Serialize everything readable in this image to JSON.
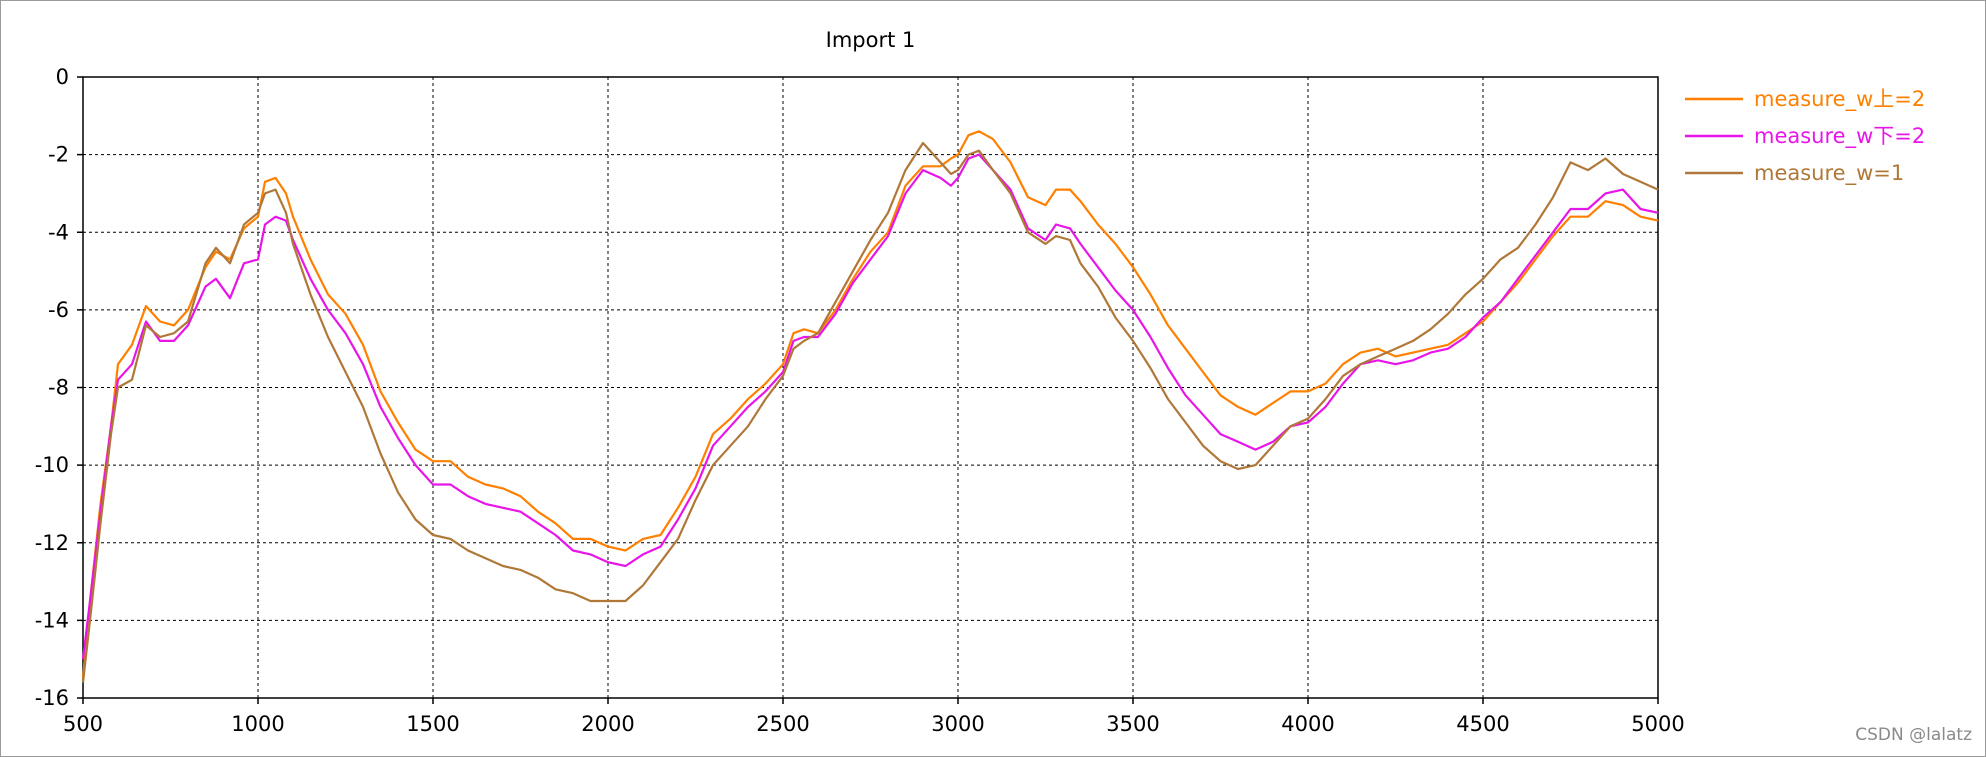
{
  "watermark": "CSDN @lalatz",
  "chart_data": {
    "type": "line",
    "title": "Import 1",
    "xlabel": "",
    "ylabel": "",
    "xlim": [
      500,
      5000
    ],
    "ylim": [
      -16,
      0
    ],
    "xticks": [
      500,
      1000,
      1500,
      2000,
      2500,
      3000,
      3500,
      4000,
      4500,
      5000
    ],
    "yticks": [
      0,
      -2,
      -4,
      -6,
      -8,
      -10,
      -12,
      -14,
      -16
    ],
    "grid": true,
    "legend_position": "right",
    "series": [
      {
        "name": "measure_w上=2",
        "color": "#ff8000",
        "points": [
          [
            500,
            -15.5
          ],
          [
            520,
            -13.5
          ],
          [
            550,
            -11
          ],
          [
            580,
            -9
          ],
          [
            600,
            -7.4
          ],
          [
            640,
            -6.9
          ],
          [
            680,
            -5.9
          ],
          [
            720,
            -6.3
          ],
          [
            760,
            -6.4
          ],
          [
            800,
            -6.0
          ],
          [
            850,
            -4.9
          ],
          [
            880,
            -4.5
          ],
          [
            920,
            -4.7
          ],
          [
            960,
            -3.9
          ],
          [
            1000,
            -3.6
          ],
          [
            1020,
            -2.7
          ],
          [
            1050,
            -2.6
          ],
          [
            1080,
            -3.0
          ],
          [
            1100,
            -3.6
          ],
          [
            1150,
            -4.7
          ],
          [
            1200,
            -5.6
          ],
          [
            1250,
            -6.1
          ],
          [
            1300,
            -6.9
          ],
          [
            1350,
            -8.1
          ],
          [
            1400,
            -8.9
          ],
          [
            1450,
            -9.6
          ],
          [
            1500,
            -9.9
          ],
          [
            1550,
            -9.9
          ],
          [
            1600,
            -10.3
          ],
          [
            1650,
            -10.5
          ],
          [
            1700,
            -10.6
          ],
          [
            1750,
            -10.8
          ],
          [
            1800,
            -11.2
          ],
          [
            1850,
            -11.5
          ],
          [
            1900,
            -11.9
          ],
          [
            1950,
            -11.9
          ],
          [
            2000,
            -12.1
          ],
          [
            2050,
            -12.2
          ],
          [
            2100,
            -11.9
          ],
          [
            2150,
            -11.8
          ],
          [
            2200,
            -11.1
          ],
          [
            2250,
            -10.3
          ],
          [
            2300,
            -9.2
          ],
          [
            2350,
            -8.8
          ],
          [
            2400,
            -8.3
          ],
          [
            2450,
            -7.9
          ],
          [
            2500,
            -7.4
          ],
          [
            2530,
            -6.6
          ],
          [
            2560,
            -6.5
          ],
          [
            2600,
            -6.6
          ],
          [
            2650,
            -6.0
          ],
          [
            2700,
            -5.2
          ],
          [
            2750,
            -4.5
          ],
          [
            2800,
            -4.0
          ],
          [
            2850,
            -2.8
          ],
          [
            2900,
            -2.3
          ],
          [
            2950,
            -2.3
          ],
          [
            2980,
            -2.1
          ],
          [
            3000,
            -2.0
          ],
          [
            3030,
            -1.5
          ],
          [
            3060,
            -1.4
          ],
          [
            3100,
            -1.6
          ],
          [
            3150,
            -2.2
          ],
          [
            3200,
            -3.1
          ],
          [
            3250,
            -3.3
          ],
          [
            3280,
            -2.9
          ],
          [
            3320,
            -2.9
          ],
          [
            3350,
            -3.2
          ],
          [
            3400,
            -3.8
          ],
          [
            3450,
            -4.3
          ],
          [
            3500,
            -4.9
          ],
          [
            3550,
            -5.6
          ],
          [
            3600,
            -6.4
          ],
          [
            3650,
            -7.0
          ],
          [
            3700,
            -7.6
          ],
          [
            3750,
            -8.2
          ],
          [
            3800,
            -8.5
          ],
          [
            3850,
            -8.7
          ],
          [
            3900,
            -8.4
          ],
          [
            3950,
            -8.1
          ],
          [
            4000,
            -8.1
          ],
          [
            4050,
            -7.9
          ],
          [
            4100,
            -7.4
          ],
          [
            4150,
            -7.1
          ],
          [
            4200,
            -7.0
          ],
          [
            4250,
            -7.2
          ],
          [
            4300,
            -7.1
          ],
          [
            4350,
            -7.0
          ],
          [
            4400,
            -6.9
          ],
          [
            4450,
            -6.6
          ],
          [
            4500,
            -6.3
          ],
          [
            4550,
            -5.8
          ],
          [
            4600,
            -5.3
          ],
          [
            4650,
            -4.7
          ],
          [
            4700,
            -4.1
          ],
          [
            4750,
            -3.6
          ],
          [
            4800,
            -3.6
          ],
          [
            4850,
            -3.2
          ],
          [
            4900,
            -3.3
          ],
          [
            4950,
            -3.6
          ],
          [
            5000,
            -3.7
          ]
        ]
      },
      {
        "name": "measure_w下=2",
        "color": "#e815e8",
        "points": [
          [
            500,
            -15.0
          ],
          [
            520,
            -13.5
          ],
          [
            550,
            -11.2
          ],
          [
            580,
            -9.0
          ],
          [
            600,
            -7.8
          ],
          [
            640,
            -7.4
          ],
          [
            680,
            -6.3
          ],
          [
            720,
            -6.8
          ],
          [
            760,
            -6.8
          ],
          [
            800,
            -6.4
          ],
          [
            850,
            -5.4
          ],
          [
            880,
            -5.2
          ],
          [
            920,
            -5.7
          ],
          [
            960,
            -4.8
          ],
          [
            1000,
            -4.7
          ],
          [
            1020,
            -3.8
          ],
          [
            1050,
            -3.6
          ],
          [
            1080,
            -3.7
          ],
          [
            1100,
            -4.2
          ],
          [
            1150,
            -5.2
          ],
          [
            1200,
            -6.0
          ],
          [
            1250,
            -6.6
          ],
          [
            1300,
            -7.4
          ],
          [
            1350,
            -8.5
          ],
          [
            1400,
            -9.3
          ],
          [
            1450,
            -10.0
          ],
          [
            1500,
            -10.5
          ],
          [
            1550,
            -10.5
          ],
          [
            1600,
            -10.8
          ],
          [
            1650,
            -11.0
          ],
          [
            1700,
            -11.1
          ],
          [
            1750,
            -11.2
          ],
          [
            1800,
            -11.5
          ],
          [
            1850,
            -11.8
          ],
          [
            1900,
            -12.2
          ],
          [
            1950,
            -12.3
          ],
          [
            2000,
            -12.5
          ],
          [
            2050,
            -12.6
          ],
          [
            2100,
            -12.3
          ],
          [
            2150,
            -12.1
          ],
          [
            2200,
            -11.4
          ],
          [
            2250,
            -10.6
          ],
          [
            2300,
            -9.5
          ],
          [
            2350,
            -9.0
          ],
          [
            2400,
            -8.5
          ],
          [
            2450,
            -8.1
          ],
          [
            2500,
            -7.6
          ],
          [
            2530,
            -6.8
          ],
          [
            2560,
            -6.7
          ],
          [
            2600,
            -6.7
          ],
          [
            2650,
            -6.1
          ],
          [
            2700,
            -5.3
          ],
          [
            2750,
            -4.7
          ],
          [
            2800,
            -4.1
          ],
          [
            2850,
            -3.0
          ],
          [
            2900,
            -2.4
          ],
          [
            2950,
            -2.6
          ],
          [
            2980,
            -2.8
          ],
          [
            3000,
            -2.6
          ],
          [
            3030,
            -2.1
          ],
          [
            3060,
            -2.0
          ],
          [
            3100,
            -2.4
          ],
          [
            3150,
            -2.9
          ],
          [
            3200,
            -3.9
          ],
          [
            3250,
            -4.2
          ],
          [
            3280,
            -3.8
          ],
          [
            3320,
            -3.9
          ],
          [
            3350,
            -4.3
          ],
          [
            3400,
            -4.9
          ],
          [
            3450,
            -5.5
          ],
          [
            3500,
            -6.0
          ],
          [
            3550,
            -6.7
          ],
          [
            3600,
            -7.5
          ],
          [
            3650,
            -8.2
          ],
          [
            3700,
            -8.7
          ],
          [
            3750,
            -9.2
          ],
          [
            3800,
            -9.4
          ],
          [
            3850,
            -9.6
          ],
          [
            3900,
            -9.4
          ],
          [
            3950,
            -9.0
          ],
          [
            4000,
            -8.9
          ],
          [
            4050,
            -8.5
          ],
          [
            4100,
            -7.9
          ],
          [
            4150,
            -7.4
          ],
          [
            4200,
            -7.3
          ],
          [
            4250,
            -7.4
          ],
          [
            4300,
            -7.3
          ],
          [
            4350,
            -7.1
          ],
          [
            4400,
            -7.0
          ],
          [
            4450,
            -6.7
          ],
          [
            4500,
            -6.2
          ],
          [
            4550,
            -5.8
          ],
          [
            4600,
            -5.2
          ],
          [
            4650,
            -4.6
          ],
          [
            4700,
            -4.0
          ],
          [
            4750,
            -3.4
          ],
          [
            4800,
            -3.4
          ],
          [
            4850,
            -3.0
          ],
          [
            4900,
            -2.9
          ],
          [
            4950,
            -3.4
          ],
          [
            5000,
            -3.5
          ]
        ]
      },
      {
        "name": "measure_w=1",
        "color": "#b07838",
        "points": [
          [
            500,
            -15.6
          ],
          [
            520,
            -14.0
          ],
          [
            550,
            -11.5
          ],
          [
            580,
            -9.2
          ],
          [
            600,
            -8.0
          ],
          [
            640,
            -7.8
          ],
          [
            680,
            -6.4
          ],
          [
            720,
            -6.7
          ],
          [
            760,
            -6.6
          ],
          [
            800,
            -6.3
          ],
          [
            850,
            -4.8
          ],
          [
            880,
            -4.4
          ],
          [
            920,
            -4.8
          ],
          [
            960,
            -3.8
          ],
          [
            1000,
            -3.5
          ],
          [
            1020,
            -3.0
          ],
          [
            1050,
            -2.9
          ],
          [
            1080,
            -3.5
          ],
          [
            1100,
            -4.3
          ],
          [
            1150,
            -5.6
          ],
          [
            1200,
            -6.7
          ],
          [
            1250,
            -7.6
          ],
          [
            1300,
            -8.5
          ],
          [
            1350,
            -9.7
          ],
          [
            1400,
            -10.7
          ],
          [
            1450,
            -11.4
          ],
          [
            1500,
            -11.8
          ],
          [
            1550,
            -11.9
          ],
          [
            1600,
            -12.2
          ],
          [
            1650,
            -12.4
          ],
          [
            1700,
            -12.6
          ],
          [
            1750,
            -12.7
          ],
          [
            1800,
            -12.9
          ],
          [
            1850,
            -13.2
          ],
          [
            1900,
            -13.3
          ],
          [
            1950,
            -13.5
          ],
          [
            2000,
            -13.5
          ],
          [
            2050,
            -13.5
          ],
          [
            2100,
            -13.1
          ],
          [
            2150,
            -12.5
          ],
          [
            2200,
            -11.9
          ],
          [
            2250,
            -10.9
          ],
          [
            2300,
            -10.0
          ],
          [
            2350,
            -9.5
          ],
          [
            2400,
            -9.0
          ],
          [
            2450,
            -8.3
          ],
          [
            2500,
            -7.7
          ],
          [
            2530,
            -7.0
          ],
          [
            2560,
            -6.8
          ],
          [
            2600,
            -6.6
          ],
          [
            2650,
            -5.8
          ],
          [
            2700,
            -5.0
          ],
          [
            2750,
            -4.2
          ],
          [
            2800,
            -3.5
          ],
          [
            2850,
            -2.4
          ],
          [
            2900,
            -1.7
          ],
          [
            2950,
            -2.2
          ],
          [
            2980,
            -2.5
          ],
          [
            3000,
            -2.4
          ],
          [
            3030,
            -2.0
          ],
          [
            3060,
            -1.9
          ],
          [
            3100,
            -2.4
          ],
          [
            3150,
            -3.0
          ],
          [
            3200,
            -4.0
          ],
          [
            3250,
            -4.3
          ],
          [
            3280,
            -4.1
          ],
          [
            3320,
            -4.2
          ],
          [
            3350,
            -4.8
          ],
          [
            3400,
            -5.4
          ],
          [
            3450,
            -6.2
          ],
          [
            3500,
            -6.8
          ],
          [
            3550,
            -7.5
          ],
          [
            3600,
            -8.3
          ],
          [
            3650,
            -8.9
          ],
          [
            3700,
            -9.5
          ],
          [
            3750,
            -9.9
          ],
          [
            3800,
            -10.1
          ],
          [
            3850,
            -10.0
          ],
          [
            3900,
            -9.5
          ],
          [
            3950,
            -9.0
          ],
          [
            4000,
            -8.8
          ],
          [
            4050,
            -8.3
          ],
          [
            4100,
            -7.7
          ],
          [
            4150,
            -7.4
          ],
          [
            4200,
            -7.2
          ],
          [
            4250,
            -7.0
          ],
          [
            4300,
            -6.8
          ],
          [
            4350,
            -6.5
          ],
          [
            4400,
            -6.1
          ],
          [
            4450,
            -5.6
          ],
          [
            4500,
            -5.2
          ],
          [
            4550,
            -4.7
          ],
          [
            4600,
            -4.4
          ],
          [
            4650,
            -3.8
          ],
          [
            4700,
            -3.1
          ],
          [
            4750,
            -2.2
          ],
          [
            4800,
            -2.4
          ],
          [
            4850,
            -2.1
          ],
          [
            4900,
            -2.5
          ],
          [
            4950,
            -2.7
          ],
          [
            5000,
            -2.9
          ]
        ]
      }
    ]
  }
}
